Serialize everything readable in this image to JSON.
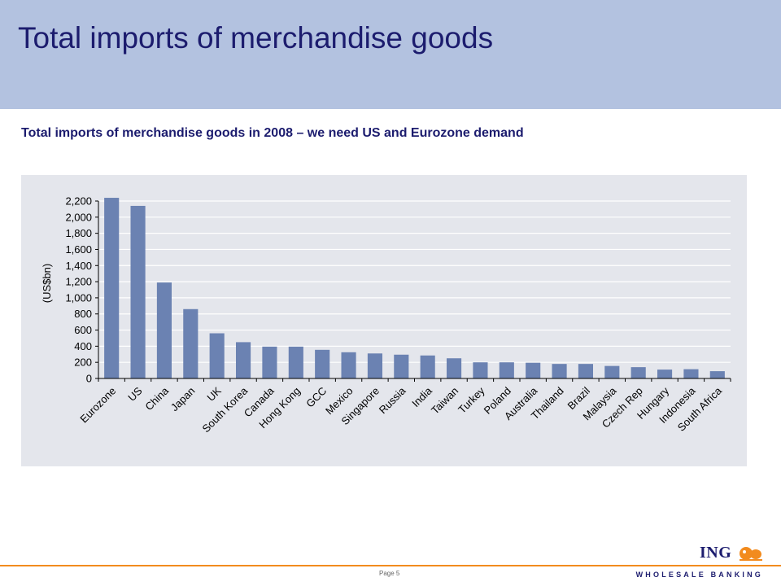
{
  "slide": {
    "title": "Total imports of merchandise goods",
    "subtitle": "Total imports of merchandise goods in 2008 – we need US and Eurozone demand",
    "page_label": "Page 5"
  },
  "branding": {
    "logo_text": "ING",
    "logo_icon": "lion-icon",
    "division": "WHOLESALE BANKING"
  },
  "colors": {
    "header_band": "#b3c2e0",
    "title_text": "#1c1c6e",
    "plot_background": "#e4e6ec",
    "bar": "#6b82b2",
    "footer_line": "#f28b1e",
    "logo_orange": "#f28b1e"
  },
  "chart_data": {
    "type": "bar",
    "title": "",
    "xlabel": "",
    "ylabel": "(US$bn)",
    "ylim": [
      0,
      2200
    ],
    "yticks": [
      0,
      200,
      400,
      600,
      800,
      1000,
      1200,
      1400,
      1600,
      1800,
      2000,
      2200
    ],
    "ytick_labels": [
      "0",
      "200",
      "400",
      "600",
      "800",
      "1,000",
      "1,200",
      "1,400",
      "1,600",
      "1,800",
      "2,000",
      "2,200"
    ],
    "grid": true,
    "legend": "none",
    "categories": [
      "Eurozone",
      "US",
      "China",
      "Japan",
      "UK",
      "South Korea",
      "Canada",
      "Hong Kong",
      "GCC",
      "Mexico",
      "Singapore",
      "Russia",
      "India",
      "Taiwan",
      "Turkey",
      "Poland",
      "Australia",
      "Thailand",
      "Brazil",
      "Malaysia",
      "Czech Rep",
      "Hungary",
      "Indonesia",
      "South Africa"
    ],
    "values": [
      2240,
      2140,
      1190,
      860,
      560,
      450,
      395,
      395,
      355,
      325,
      310,
      295,
      285,
      250,
      200,
      200,
      195,
      180,
      180,
      155,
      140,
      110,
      115,
      90
    ]
  }
}
